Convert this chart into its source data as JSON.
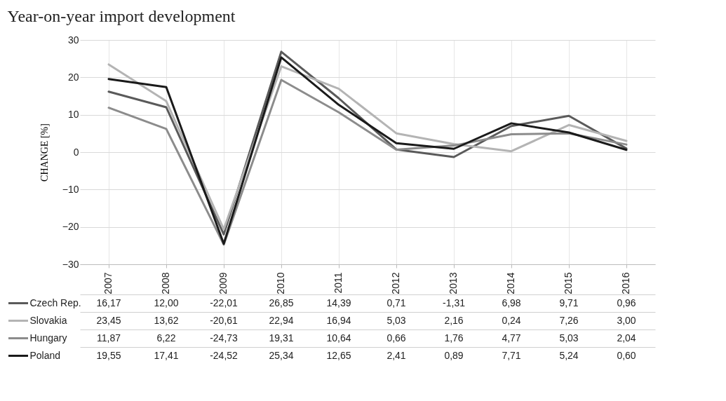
{
  "chart_data": {
    "type": "line",
    "title": "Year-on-year import development",
    "ylabel": "CHANGE [%]",
    "categories": [
      "2007",
      "2008",
      "2009",
      "2010",
      "2011",
      "2012",
      "2013",
      "2014",
      "2015",
      "2016"
    ],
    "series": [
      {
        "name": "Czech Rep.",
        "color": "#5a5a5a",
        "values": [
          16.17,
          12.0,
          -22.01,
          26.85,
          14.39,
          0.71,
          -1.31,
          6.98,
          9.71,
          0.96
        ],
        "value_labels": [
          "16,17",
          "12,00",
          "-22,01",
          "26,85",
          "14,39",
          "0,71",
          "-1,31",
          "6,98",
          "9,71",
          "0,96"
        ]
      },
      {
        "name": "Slovakia",
        "color": "#b4b4b4",
        "values": [
          23.45,
          13.62,
          -20.61,
          22.94,
          16.94,
          5.03,
          2.16,
          0.24,
          7.26,
          3.0
        ],
        "value_labels": [
          "23,45",
          "13,62",
          "-20,61",
          "22,94",
          "16,94",
          "5,03",
          "2,16",
          "0,24",
          "7,26",
          "3,00"
        ]
      },
      {
        "name": "Hungary",
        "color": "#8c8c8c",
        "values": [
          11.87,
          6.22,
          -24.73,
          19.31,
          10.64,
          0.66,
          1.76,
          4.77,
          5.03,
          2.04
        ],
        "value_labels": [
          "11,87",
          "6,22",
          "-24,73",
          "19,31",
          "10,64",
          "0,66",
          "1,76",
          "4,77",
          "5,03",
          "2,04"
        ]
      },
      {
        "name": "Poland",
        "color": "#1a1a1a",
        "values": [
          19.55,
          17.41,
          -24.52,
          25.34,
          12.65,
          2.41,
          0.89,
          7.71,
          5.24,
          0.6
        ],
        "value_labels": [
          "19,55",
          "17,41",
          "-24,52",
          "25,34",
          "12,65",
          "2,41",
          "0,89",
          "7,71",
          "5,24",
          "0,60"
        ]
      }
    ],
    "ylim": [
      -30,
      30
    ],
    "yticks": [
      -30,
      -20,
      -10,
      0,
      10,
      20,
      30
    ],
    "grid": true,
    "legend": "bottom"
  }
}
